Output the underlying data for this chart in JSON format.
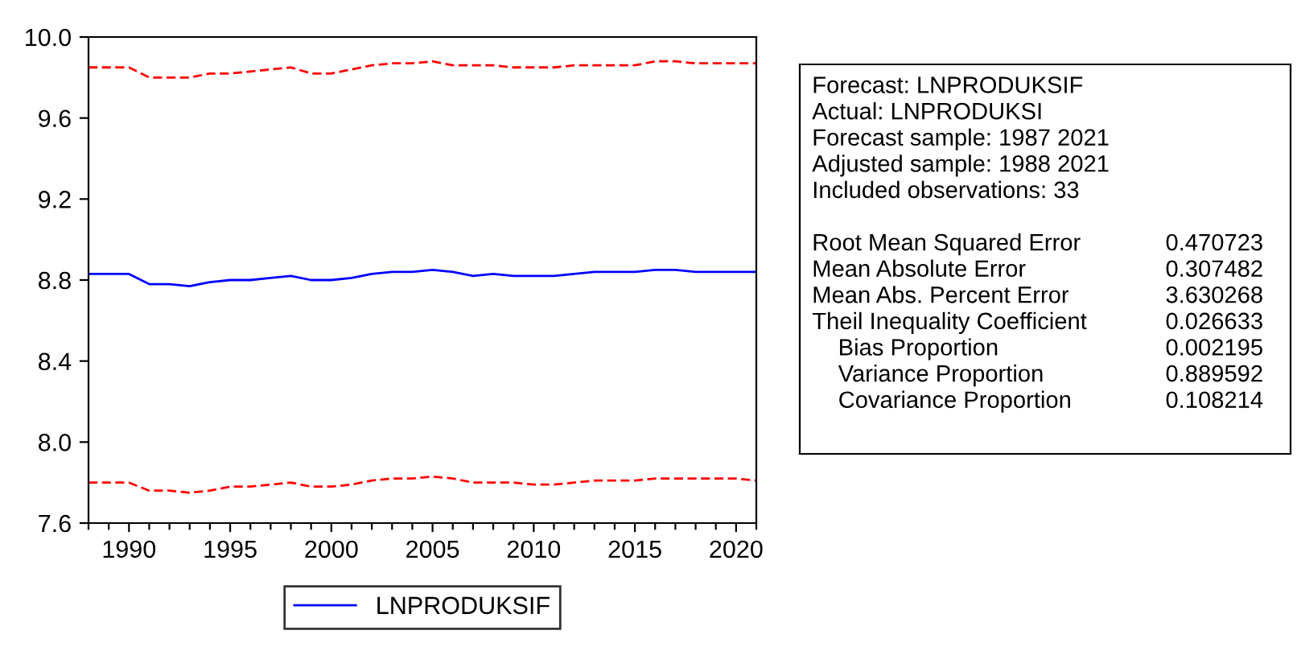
{
  "chart_data": [
    {
      "type": "line",
      "x": [
        1988,
        1989,
        1990,
        1991,
        1992,
        1993,
        1994,
        1995,
        1996,
        1997,
        1998,
        1999,
        2000,
        2001,
        2002,
        2003,
        2004,
        2005,
        2006,
        2007,
        2008,
        2009,
        2010,
        2011,
        2012,
        2013,
        2014,
        2015,
        2016,
        2017,
        2018,
        2019,
        2020,
        2021
      ],
      "series": [
        {
          "name": "LNPRODUKSIF",
          "color": "#0000ff",
          "line_style": "solid",
          "values": [
            8.83,
            8.83,
            8.83,
            8.78,
            8.78,
            8.77,
            8.79,
            8.8,
            8.8,
            8.81,
            8.82,
            8.8,
            8.8,
            8.81,
            8.83,
            8.84,
            8.84,
            8.85,
            8.84,
            8.82,
            8.83,
            8.82,
            8.82,
            8.82,
            8.83,
            8.84,
            8.84,
            8.84,
            8.85,
            8.85,
            8.84,
            8.84,
            8.84,
            8.84
          ]
        },
        {
          "color": "#ff0000",
          "line_style": "dashed",
          "values": [
            9.85,
            9.85,
            9.85,
            9.8,
            9.8,
            9.8,
            9.82,
            9.82,
            9.83,
            9.84,
            9.85,
            9.82,
            9.82,
            9.84,
            9.86,
            9.87,
            9.87,
            9.88,
            9.86,
            9.86,
            9.86,
            9.85,
            9.85,
            9.85,
            9.86,
            9.86,
            9.86,
            9.86,
            9.88,
            9.88,
            9.87,
            9.87,
            9.87,
            9.87
          ]
        },
        {
          "color": "#ff0000",
          "line_style": "dashed",
          "values": [
            7.8,
            7.8,
            7.8,
            7.76,
            7.76,
            7.75,
            7.76,
            7.78,
            7.78,
            7.79,
            7.8,
            7.78,
            7.78,
            7.79,
            7.81,
            7.82,
            7.82,
            7.83,
            7.82,
            7.8,
            7.8,
            7.8,
            7.79,
            7.79,
            7.8,
            7.81,
            7.81,
            7.81,
            7.82,
            7.82,
            7.82,
            7.82,
            7.82,
            7.81
          ]
        }
      ],
      "xlim": [
        1988,
        2021
      ],
      "xticks": [
        {
          "value": 1988,
          "label": null
        },
        {
          "value": 1989,
          "label": null
        },
        1990,
        {
          "value": 1991,
          "label": null
        },
        {
          "value": 1992,
          "label": null
        },
        {
          "value": 1993,
          "label": null
        },
        {
          "value": 1994,
          "label": null
        },
        1995,
        {
          "value": 1996,
          "label": null
        },
        {
          "value": 1997,
          "label": null
        },
        {
          "value": 1998,
          "label": null
        },
        {
          "value": 1999,
          "label": null
        },
        2000,
        {
          "value": 2001,
          "label": null
        },
        {
          "value": 2002,
          "label": null
        },
        {
          "value": 2003,
          "label": null
        },
        {
          "value": 2004,
          "label": null
        },
        2005,
        {
          "value": 2006,
          "label": null
        },
        {
          "value": 2007,
          "label": null
        },
        {
          "value": 2008,
          "label": null
        },
        {
          "value": 2009,
          "label": null
        },
        2010,
        {
          "value": 2011,
          "label": null
        },
        {
          "value": 2012,
          "label": null
        },
        {
          "value": 2013,
          "label": null
        },
        {
          "value": 2014,
          "label": null
        },
        2015,
        {
          "value": 2016,
          "label": null
        },
        {
          "value": 2017,
          "label": null
        },
        {
          "value": 2018,
          "label": null
        },
        {
          "value": 2019,
          "label": null
        },
        2020,
        {
          "value": 2021,
          "label": null
        }
      ],
      "ylim": [
        7.6,
        10.0
      ],
      "yticks": [
        7.6,
        {
          "value": 8,
          "label": "8.0"
        },
        8.4,
        8.8,
        9.2,
        9.6,
        {
          "value": 10,
          "label": "10.0"
        }
      ],
      "grid": false,
      "legend": "bottom"
    },
    {
      "type": "other",
      "annotations": [
        "Forecast: LNPRODUKSIF",
        "Actual: LNPRODUKSI",
        "Forecast sample: 1987 2021",
        "Adjusted sample: 1988 2021",
        "Included observations: 33",
        "Root Mean Squared Error\t0.470723",
        "Mean Absolute Error\t0.307482",
        "Mean Abs. Percent Error\t3.630268",
        "Theil Inequality Coefficient\t0.026633",
        "    Bias Proportion\t0.002195",
        "    Variance Proportion\t0.889592",
        "    Covariance Proportion\t0.108214"
      ]
    }
  ]
}
